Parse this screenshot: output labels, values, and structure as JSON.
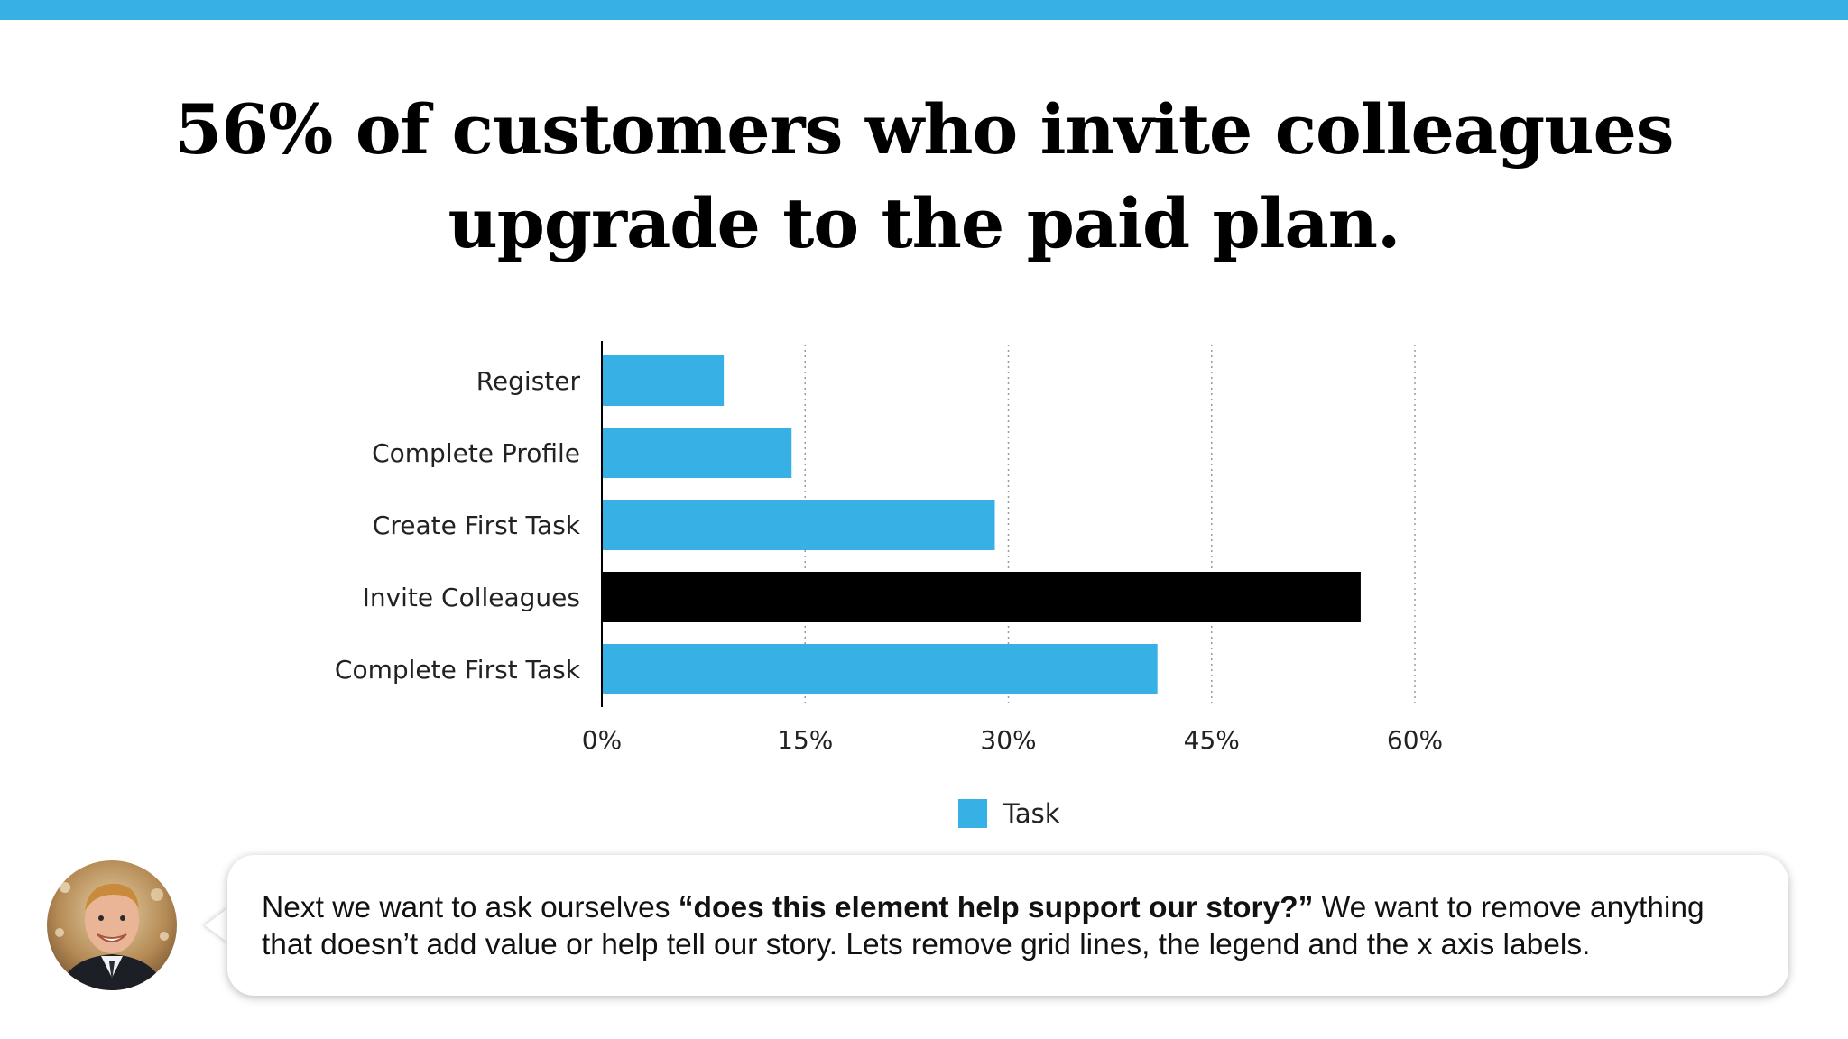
{
  "slide": {
    "accent_color": "#37b0e6",
    "title_line1": "56% of customers who invite colleagues",
    "title_line2": "upgrade to the paid plan."
  },
  "chart_data": {
    "type": "bar",
    "orientation": "horizontal",
    "categories": [
      "Register",
      "Complete Profile",
      "Create First Task",
      "Invite Colleagues",
      "Complete First Task"
    ],
    "series": [
      {
        "name": "Task",
        "values": [
          9,
          14,
          29,
          56,
          41
        ],
        "color": "#37b0e6",
        "highlight_color": "#000000",
        "highlight_index": 3
      }
    ],
    "xlim": [
      0,
      60
    ],
    "xticks": [
      0,
      15,
      30,
      45,
      60
    ],
    "xtick_labels": [
      "0%",
      "15%",
      "30%",
      "45%",
      "60%"
    ],
    "grid": "vertical dotted",
    "legend_position": "bottom-center"
  },
  "legend": {
    "label": "Task"
  },
  "narration": {
    "avatar_icon": "presenter-avatar",
    "before": "Next we want to ask ourselves ",
    "bold": "“does this element help support our story?”",
    "after": " We want to remove anything that doesn’t add value or help tell our story. Lets remove grid lines, the legend and the x axis labels."
  }
}
